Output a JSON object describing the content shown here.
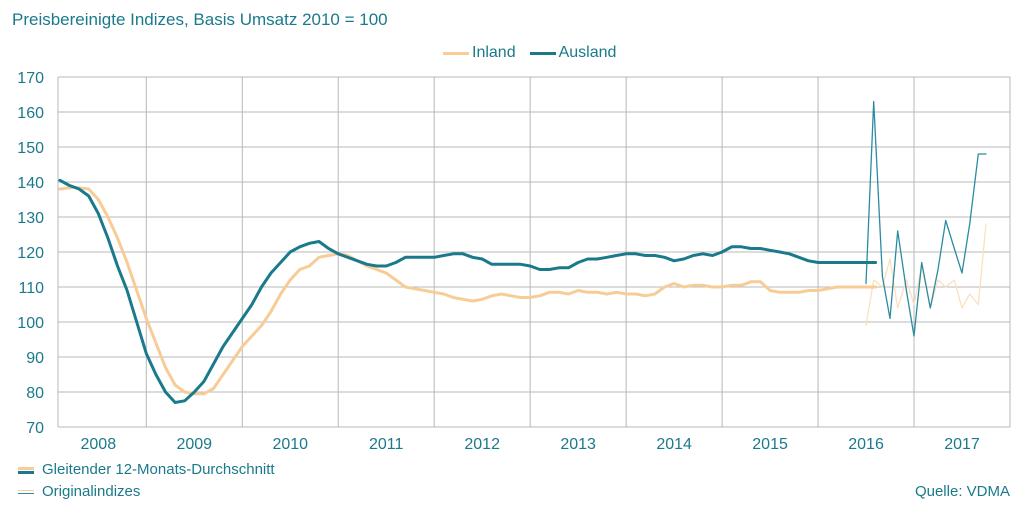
{
  "title": "Preisbereinigte Indizes, Basis Umsatz 2010 = 100",
  "legend": {
    "inland": "Inland",
    "ausland": "Ausland"
  },
  "bottom_legend": {
    "smoothed": "Gleitender 12-Monats-Durchschnitt",
    "original": "Originalindizes"
  },
  "source": "Quelle: VDMA",
  "colors": {
    "inland": "#f7cc96",
    "ausland": "#1a7a8c",
    "inland_light": "#fbe0bf",
    "ausland_light": "#2c8ba0",
    "grid": "#b8b8b8",
    "text": "#1a7a8c"
  },
  "chart_data": {
    "type": "line",
    "title": "Preisbereinigte Indizes, Basis Umsatz 2010 = 100",
    "xlabel": "",
    "ylabel": "",
    "ylim": [
      70,
      170
    ],
    "yticks": [
      70,
      80,
      90,
      100,
      110,
      120,
      130,
      140,
      150,
      160,
      170
    ],
    "xlim": [
      2007.58,
      2017.5
    ],
    "year_labels": [
      "2008",
      "2009",
      "2010",
      "2011",
      "2012",
      "2013",
      "2014",
      "2015",
      "2016",
      "2017"
    ],
    "grid": true,
    "legend_position": "top-center",
    "series": [
      {
        "name": "Inland",
        "style": "smoothed",
        "color": "#f7cc96",
        "x": [
          2007.6,
          2007.75,
          2007.9,
          2008.0,
          2008.1,
          2008.2,
          2008.3,
          2008.4,
          2008.5,
          2008.6,
          2008.7,
          2008.8,
          2008.9,
          2009.0,
          2009.1,
          2009.2,
          2009.3,
          2009.4,
          2009.5,
          2009.6,
          2009.7,
          2009.8,
          2009.9,
          2010.0,
          2010.1,
          2010.2,
          2010.3,
          2010.4,
          2010.5,
          2010.6,
          2010.7,
          2010.8,
          2010.9,
          2011.0,
          2011.1,
          2011.2,
          2011.3,
          2011.4,
          2011.5,
          2011.6,
          2011.7,
          2011.8,
          2011.9,
          2012.0,
          2012.1,
          2012.2,
          2012.3,
          2012.4,
          2012.5,
          2012.6,
          2012.7,
          2012.8,
          2012.9,
          2013.0,
          2013.1,
          2013.2,
          2013.3,
          2013.4,
          2013.5,
          2013.6,
          2013.7,
          2013.8,
          2013.9,
          2014.0,
          2014.1,
          2014.2,
          2014.3,
          2014.4,
          2014.5,
          2014.6,
          2014.7,
          2014.8,
          2014.9,
          2015.0,
          2015.1,
          2015.2,
          2015.3,
          2015.4,
          2015.5,
          2015.6,
          2015.7,
          2015.8,
          2015.9,
          2016.0,
          2016.1
        ],
        "values": [
          138,
          138.5,
          138,
          135,
          130,
          124,
          117,
          109,
          101,
          94,
          87,
          82,
          80,
          79.5,
          79.5,
          81,
          85,
          89,
          93,
          96,
          99,
          103,
          108,
          112,
          115,
          116,
          118.5,
          119,
          119.5,
          119,
          117.5,
          116,
          115,
          114,
          112,
          110,
          109.5,
          109,
          108.5,
          108,
          107,
          106.5,
          106,
          106.5,
          107.5,
          108,
          107.5,
          107,
          107,
          107.5,
          108.5,
          108.5,
          108,
          109,
          108.5,
          108.5,
          108,
          108.5,
          108,
          108,
          107.5,
          108,
          110,
          111,
          110,
          110.5,
          110.5,
          110,
          110,
          110.5,
          110.5,
          111.5,
          111.5,
          109,
          108.5,
          108.5,
          108.5,
          109,
          109,
          109.5,
          110,
          110,
          110,
          110,
          110
        ]
      },
      {
        "name": "Ausland",
        "style": "smoothed",
        "color": "#1a7a8c",
        "x": [
          2007.6,
          2007.7,
          2007.8,
          2007.9,
          2008.0,
          2008.1,
          2008.2,
          2008.3,
          2008.4,
          2008.5,
          2008.6,
          2008.7,
          2008.8,
          2008.9,
          2009.0,
          2009.1,
          2009.2,
          2009.3,
          2009.4,
          2009.5,
          2009.6,
          2009.7,
          2009.8,
          2009.9,
          2010.0,
          2010.1,
          2010.2,
          2010.3,
          2010.4,
          2010.5,
          2010.6,
          2010.7,
          2010.8,
          2010.9,
          2011.0,
          2011.1,
          2011.2,
          2011.3,
          2011.4,
          2011.5,
          2011.6,
          2011.7,
          2011.8,
          2011.9,
          2012.0,
          2012.1,
          2012.2,
          2012.3,
          2012.4,
          2012.5,
          2012.6,
          2012.7,
          2012.8,
          2012.9,
          2013.0,
          2013.1,
          2013.2,
          2013.3,
          2013.4,
          2013.5,
          2013.6,
          2013.7,
          2013.8,
          2013.9,
          2014.0,
          2014.1,
          2014.2,
          2014.3,
          2014.4,
          2014.5,
          2014.6,
          2014.7,
          2014.8,
          2014.9,
          2015.0,
          2015.1,
          2015.2,
          2015.3,
          2015.4,
          2015.5,
          2015.6,
          2015.7,
          2015.8,
          2015.9,
          2016.0,
          2016.1
        ],
        "values": [
          140.5,
          139,
          138,
          136,
          131,
          124,
          116,
          109,
          100,
          91,
          85,
          80,
          77,
          77.5,
          80,
          83,
          88,
          93,
          97,
          101,
          105,
          110,
          114,
          117,
          120,
          121.5,
          122.5,
          123,
          121,
          119.5,
          118.5,
          117.5,
          116.5,
          116,
          116,
          117,
          118.5,
          118.5,
          118.5,
          118.5,
          119,
          119.5,
          119.5,
          118.5,
          118,
          116.5,
          116.5,
          116.5,
          116.5,
          116,
          115,
          115,
          115.5,
          115.5,
          117,
          118,
          118,
          118.5,
          119,
          119.5,
          119.5,
          119,
          119,
          118.5,
          117.5,
          118,
          119,
          119.5,
          119,
          120,
          121.5,
          121.5,
          121,
          121,
          120.5,
          120,
          119.5,
          118.5,
          117.5,
          117,
          117,
          117,
          117,
          117,
          117,
          117
        ]
      },
      {
        "name": "Inland",
        "style": "original",
        "color": "#fbe0bf",
        "x": [
          2016.0,
          2016.08,
          2016.17,
          2016.25,
          2016.33,
          2016.42,
          2016.5,
          2016.58,
          2016.67,
          2016.75,
          2016.83,
          2016.92,
          2017.0,
          2017.08,
          2017.17,
          2017.25
        ],
        "values": [
          99,
          112,
          110,
          118,
          104,
          112,
          105,
          116,
          104,
          112,
          110,
          112,
          104,
          108,
          105,
          128
        ]
      },
      {
        "name": "Ausland",
        "style": "original",
        "color": "#2c8ba0",
        "x": [
          2016.0,
          2016.08,
          2016.17,
          2016.25,
          2016.33,
          2016.42,
          2016.5,
          2016.58,
          2016.67,
          2016.75,
          2016.83,
          2016.92,
          2017.0,
          2017.08,
          2017.17,
          2017.25
        ],
        "values": [
          111,
          163,
          113,
          101,
          126,
          109,
          96,
          117,
          104,
          115,
          129,
          121,
          114,
          128,
          148,
          148
        ]
      }
    ]
  }
}
